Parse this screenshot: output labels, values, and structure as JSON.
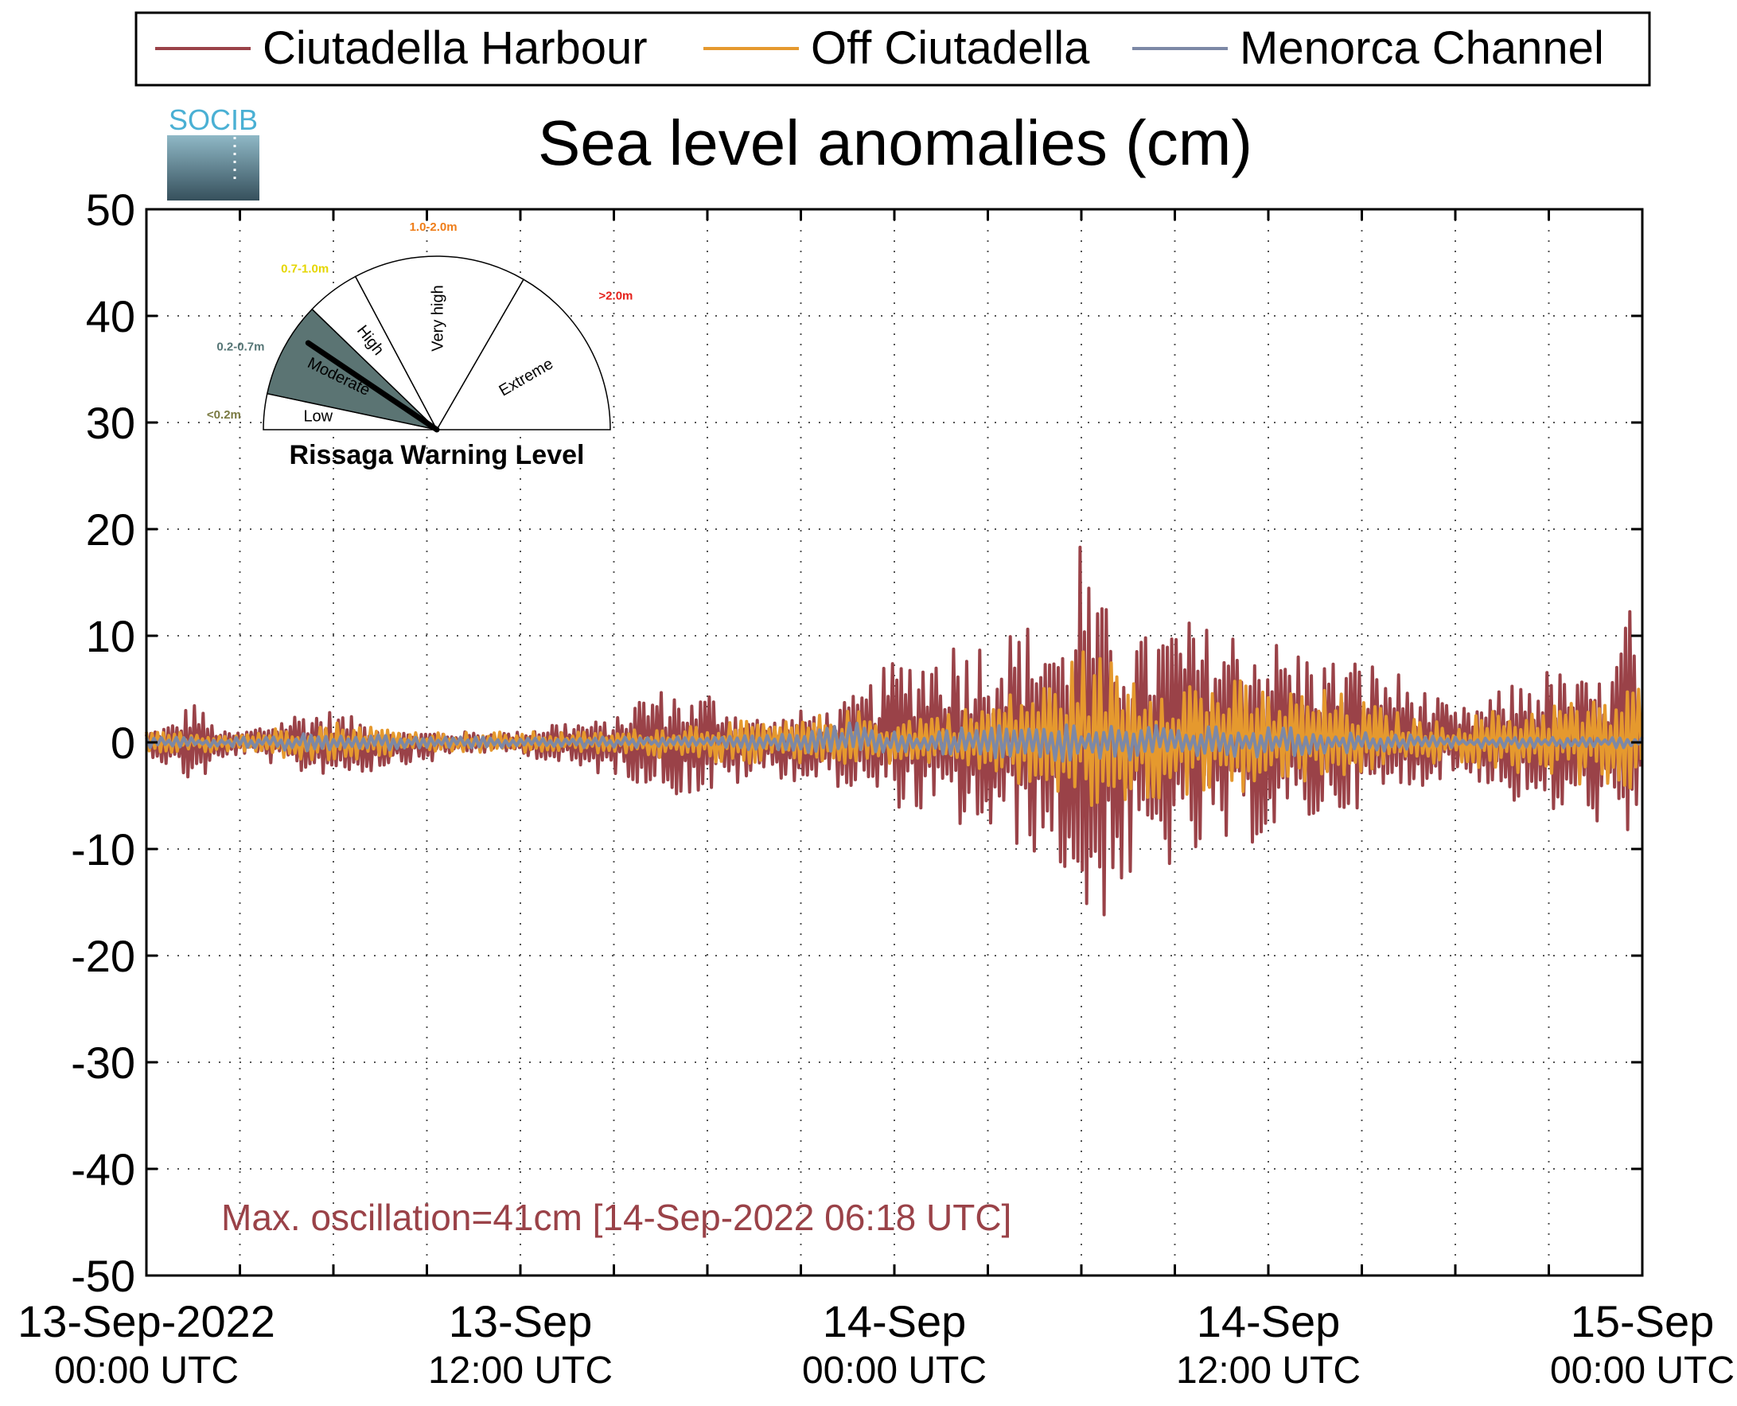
{
  "title": "Sea level anomalies (cm)",
  "logo": {
    "text": "SOCIB"
  },
  "legend": {
    "placement": "top",
    "items": [
      {
        "name": "Ciutadella Harbour",
        "color": "#9a4248"
      },
      {
        "name": "Off Ciutadella",
        "color": "#e5992e"
      },
      {
        "name": "Menorca Channel",
        "color": "#7c88a6"
      }
    ]
  },
  "gauge": {
    "title": "Rissaga Warning Level",
    "sectors": [
      {
        "label": "Low",
        "range": "<0.2m",
        "range_color": "#7a7a42",
        "fill": "#ffffff"
      },
      {
        "label": "Moderate",
        "range": "0.2-0.7m",
        "range_color": "#557575",
        "fill": "#5b7473"
      },
      {
        "label": "High",
        "range": "0.7-1.0m",
        "range_color": "#e5d600",
        "fill": "#ffffff"
      },
      {
        "label": "Very high",
        "range": "1.0-2.0m",
        "range_color": "#ef7d18",
        "fill": "#ffffff"
      },
      {
        "label": "Extreme",
        "range": ">2.0m",
        "range_color": "#e5201a",
        "fill": "#ffffff"
      }
    ],
    "current_level": "Moderate"
  },
  "annotation": {
    "text": "Max. oscillation=41cm [14-Sep-2022 06:18 UTC]",
    "color": "#9a4248"
  },
  "chart_data": {
    "type": "line",
    "title": "Sea level anomalies (cm)",
    "xlabel": "",
    "ylabel": "",
    "x_unit": "hours since 13-Sep-2022 00:00 UTC",
    "xlim": [
      0,
      48
    ],
    "ylim": [
      -50,
      50
    ],
    "grid": true,
    "y_ticks": [
      50,
      40,
      30,
      20,
      10,
      0,
      -10,
      -20,
      -30,
      -40,
      -50
    ],
    "y_tick_labels": [
      "50",
      "40",
      "30",
      "20",
      "10",
      "0",
      "-10",
      "-20",
      "-30",
      "-40",
      "-50"
    ],
    "x_ticks": [
      0,
      3,
      6,
      9,
      12,
      15,
      18,
      21,
      24,
      27,
      30,
      33,
      36,
      39,
      42,
      45,
      48
    ],
    "x_tick_labels": [
      {
        "x": 0,
        "date": "13-Sep-2022",
        "time": "00:00 UTC"
      },
      {
        "x": 12,
        "date": "13-Sep",
        "time": "12:00 UTC"
      },
      {
        "x": 24,
        "date": "14-Sep",
        "time": "00:00 UTC"
      },
      {
        "x": 36,
        "date": "14-Sep",
        "time": "12:00 UTC"
      },
      {
        "x": 48,
        "date": "15-Sep",
        "time": "00:00 UTC"
      }
    ],
    "series": [
      {
        "name": "Ciutadella Harbour",
        "color": "#9a4248",
        "x": [
          0,
          1,
          1.5,
          2,
          2.5,
          3,
          4,
          5,
          6,
          7,
          8,
          9,
          10,
          11,
          12,
          13,
          14,
          15,
          16,
          17,
          17.5,
          18,
          19,
          20,
          21,
          22,
          23,
          24,
          25,
          26,
          27,
          28,
          29,
          29.5,
          30,
          30.2,
          30.5,
          31,
          31.5,
          32,
          32.5,
          33,
          34,
          35,
          36,
          37,
          38,
          39,
          40,
          41,
          42,
          43,
          44,
          45,
          46,
          47,
          47.5,
          48
        ],
        "y_high": [
          1,
          2,
          4.5,
          2,
          1,
          1,
          2,
          3,
          3,
          2,
          1,
          1,
          1,
          1,
          1,
          2,
          2,
          2,
          5,
          5,
          4,
          5,
          3,
          2,
          3,
          3,
          5,
          8,
          9,
          10,
          10,
          11,
          12,
          9,
          22.5,
          15,
          14,
          12,
          11,
          10,
          11,
          12,
          11,
          11,
          10,
          9,
          8,
          8,
          7,
          5,
          3,
          4,
          6,
          7,
          6,
          6,
          14,
          8
        ],
        "y_low": [
          -1,
          -3,
          -4,
          -3,
          -2,
          -1,
          -2,
          -3,
          -3,
          -3,
          -2,
          -2,
          -1,
          -1,
          -1,
          -2,
          -3,
          -3,
          -4,
          -5,
          -5,
          -5,
          -4,
          -3,
          -4,
          -4,
          -5,
          -6,
          -7,
          -8,
          -9,
          -10,
          -11,
          -13,
          -20,
          -17,
          -18,
          -15,
          -14,
          -13,
          -12,
          -12,
          -11,
          -10,
          -9,
          -8,
          -7,
          -6,
          -5,
          -4,
          -3,
          -4,
          -6,
          -7,
          -7,
          -8,
          -12,
          -8
        ]
      },
      {
        "name": "Off Ciutadella",
        "color": "#e5992e",
        "x": [
          0,
          3,
          6,
          9,
          12,
          15,
          18,
          21,
          22,
          23,
          24,
          25,
          26,
          27,
          28,
          29,
          30,
          31,
          32,
          33,
          34,
          35,
          36,
          37,
          38,
          39,
          40,
          41,
          42,
          43,
          44,
          45,
          46,
          47,
          48
        ],
        "y_high": [
          1,
          1,
          2,
          1,
          1,
          1,
          2,
          2,
          3,
          3,
          2,
          3,
          3,
          4,
          5,
          6,
          9,
          8,
          7,
          7,
          6,
          6,
          5,
          5,
          5,
          4,
          3,
          2,
          2,
          3,
          3,
          4,
          4,
          4,
          9
        ],
        "y_low": [
          -1,
          -1,
          -2,
          -1,
          -1,
          -1,
          -2,
          -2,
          -2,
          -2,
          -2,
          -2,
          -2,
          -3,
          -4,
          -5,
          -7,
          -6,
          -6,
          -5,
          -5,
          -5,
          -4,
          -4,
          -4,
          -3,
          -2,
          -2,
          -2,
          -3,
          -3,
          -3,
          -4,
          -4,
          -6
        ]
      },
      {
        "name": "Menorca Channel",
        "color": "#7c88a6",
        "x": [
          0,
          3,
          6,
          9,
          12,
          15,
          18,
          21,
          22.5,
          24,
          27,
          30,
          33,
          36,
          39,
          42,
          45,
          48
        ],
        "y_high": [
          0.5,
          0.5,
          1,
          0.5,
          0.5,
          0.5,
          0.5,
          1,
          2,
          1,
          1.5,
          2,
          1.5,
          1.5,
          1,
          0.5,
          0.5,
          0.5
        ],
        "y_low": [
          -0.5,
          -0.5,
          -1,
          -0.5,
          -0.5,
          -0.5,
          -0.5,
          -1,
          -1,
          -1,
          -1.5,
          -2,
          -1.5,
          -1.5,
          -1,
          -0.5,
          -0.5,
          -0.5
        ]
      }
    ]
  }
}
